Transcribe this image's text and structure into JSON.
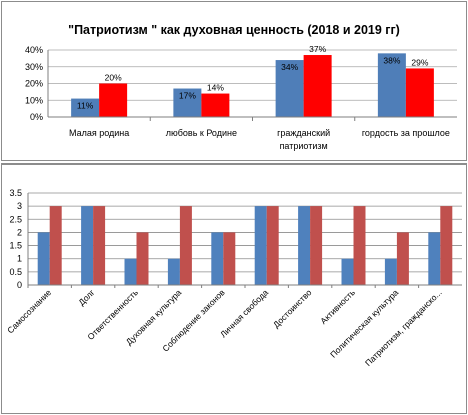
{
  "chart_data": [
    {
      "type": "bar",
      "title": "\"Патриотизм \" как духовная ценность (2018 и 2019 гг)",
      "categories": [
        "Малая родина",
        "любовь к Родине",
        "гражданский патриотизм",
        "гордость за прошлое"
      ],
      "category_lines": [
        [
          "Малая родина"
        ],
        [
          "любовь к Родине"
        ],
        [
          "гражданский",
          "патриотизм"
        ],
        [
          "гордость за прошлое"
        ]
      ],
      "series": [
        {
          "values": [
            11,
            17,
            34,
            38
          ],
          "labels": [
            "11%",
            "17%",
            "34%",
            "38%"
          ],
          "color": "#4f7eb8"
        },
        {
          "values": [
            20,
            14,
            37,
            29
          ],
          "labels": [
            "20%",
            "14%",
            "37%",
            "29%"
          ],
          "color": "#ff0000"
        }
      ],
      "yticks": [
        "0%",
        "10%",
        "20%",
        "30%",
        "40%"
      ],
      "ylim": [
        0,
        40
      ],
      "grid": true,
      "legend": "none"
    },
    {
      "type": "bar",
      "categories": [
        "Самосознание",
        "Долг",
        "Ответственность",
        "Духовная культура",
        "Соблюдение законов",
        "Личная свобода",
        "Достоинство",
        "Активность",
        "Политическая культура",
        "Патриотизм, гражданско..."
      ],
      "series": [
        {
          "values": [
            2,
            3,
            1,
            1,
            2,
            3,
            3,
            1,
            1,
            2
          ],
          "color": "#4f81bd"
        },
        {
          "values": [
            3,
            3,
            2,
            3,
            2,
            3,
            3,
            3,
            2,
            3
          ],
          "color": "#c0504d"
        }
      ],
      "yticks": [
        "0",
        "0.5",
        "1",
        "1.5",
        "2",
        "2.5",
        "3",
        "3.5"
      ],
      "ylim": [
        0,
        3.5
      ],
      "grid": true,
      "legend": "none"
    }
  ]
}
